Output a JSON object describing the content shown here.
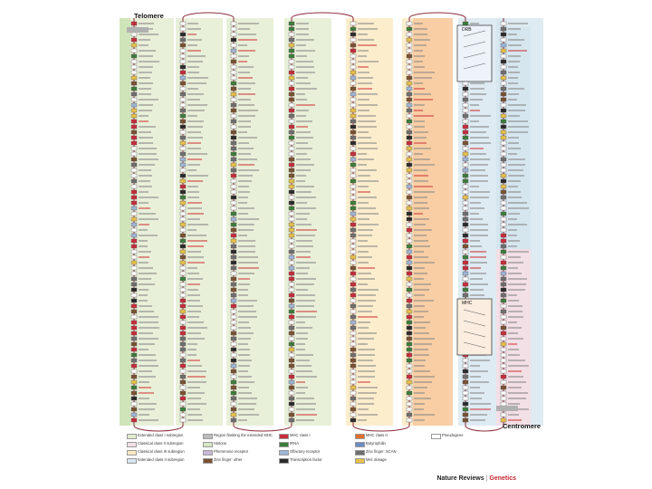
{
  "diagram": {
    "telomere_label": "Telomere",
    "centromere_label": "Centromere",
    "zoom_box_top_label": "DRB",
    "zoom_box_bottom_label": "MHC"
  },
  "legend": [
    {
      "label": "Extended class I subregion",
      "color": "#e4ecd0"
    },
    {
      "label": "Classical class II subregion",
      "color": "#f3dfe6"
    },
    {
      "label": "Classical class III subregion",
      "color": "#fbe9c0"
    },
    {
      "label": "Extended class II subregion",
      "color": "#d6e6ef"
    },
    {
      "label": "Region flanking the extended MHC",
      "color": "#bdbdbd"
    },
    {
      "label": "Histone",
      "color": "#d4e7c4"
    },
    {
      "label": "Pheromone receptor",
      "color": "#c9b7da"
    },
    {
      "label": "Zinc finger: other",
      "color": "#7a5230"
    },
    {
      "label": "MHC class I",
      "color": "#c82c3a"
    },
    {
      "label": "tRNA",
      "color": "#3a7e3a"
    },
    {
      "label": "Olfactory receptor",
      "color": "#9fb6d8"
    },
    {
      "label": "Transcription factor",
      "color": "#2b2b2b"
    },
    {
      "label": "MHC class II",
      "color": "#e16f2b"
    },
    {
      "label": "Butyrophilin",
      "color": "#6c8cc4"
    },
    {
      "label": "Zinc finger: SCAN",
      "color": "#6f6f6f"
    },
    {
      "label": "Mel: dosage",
      "color": "#e8c14a"
    },
    {
      "label": "Pseudogene",
      "color": "#ffffff"
    }
  ],
  "footer": {
    "brand": "Nature Reviews",
    "separator": "|",
    "journal": "Genetics"
  }
}
